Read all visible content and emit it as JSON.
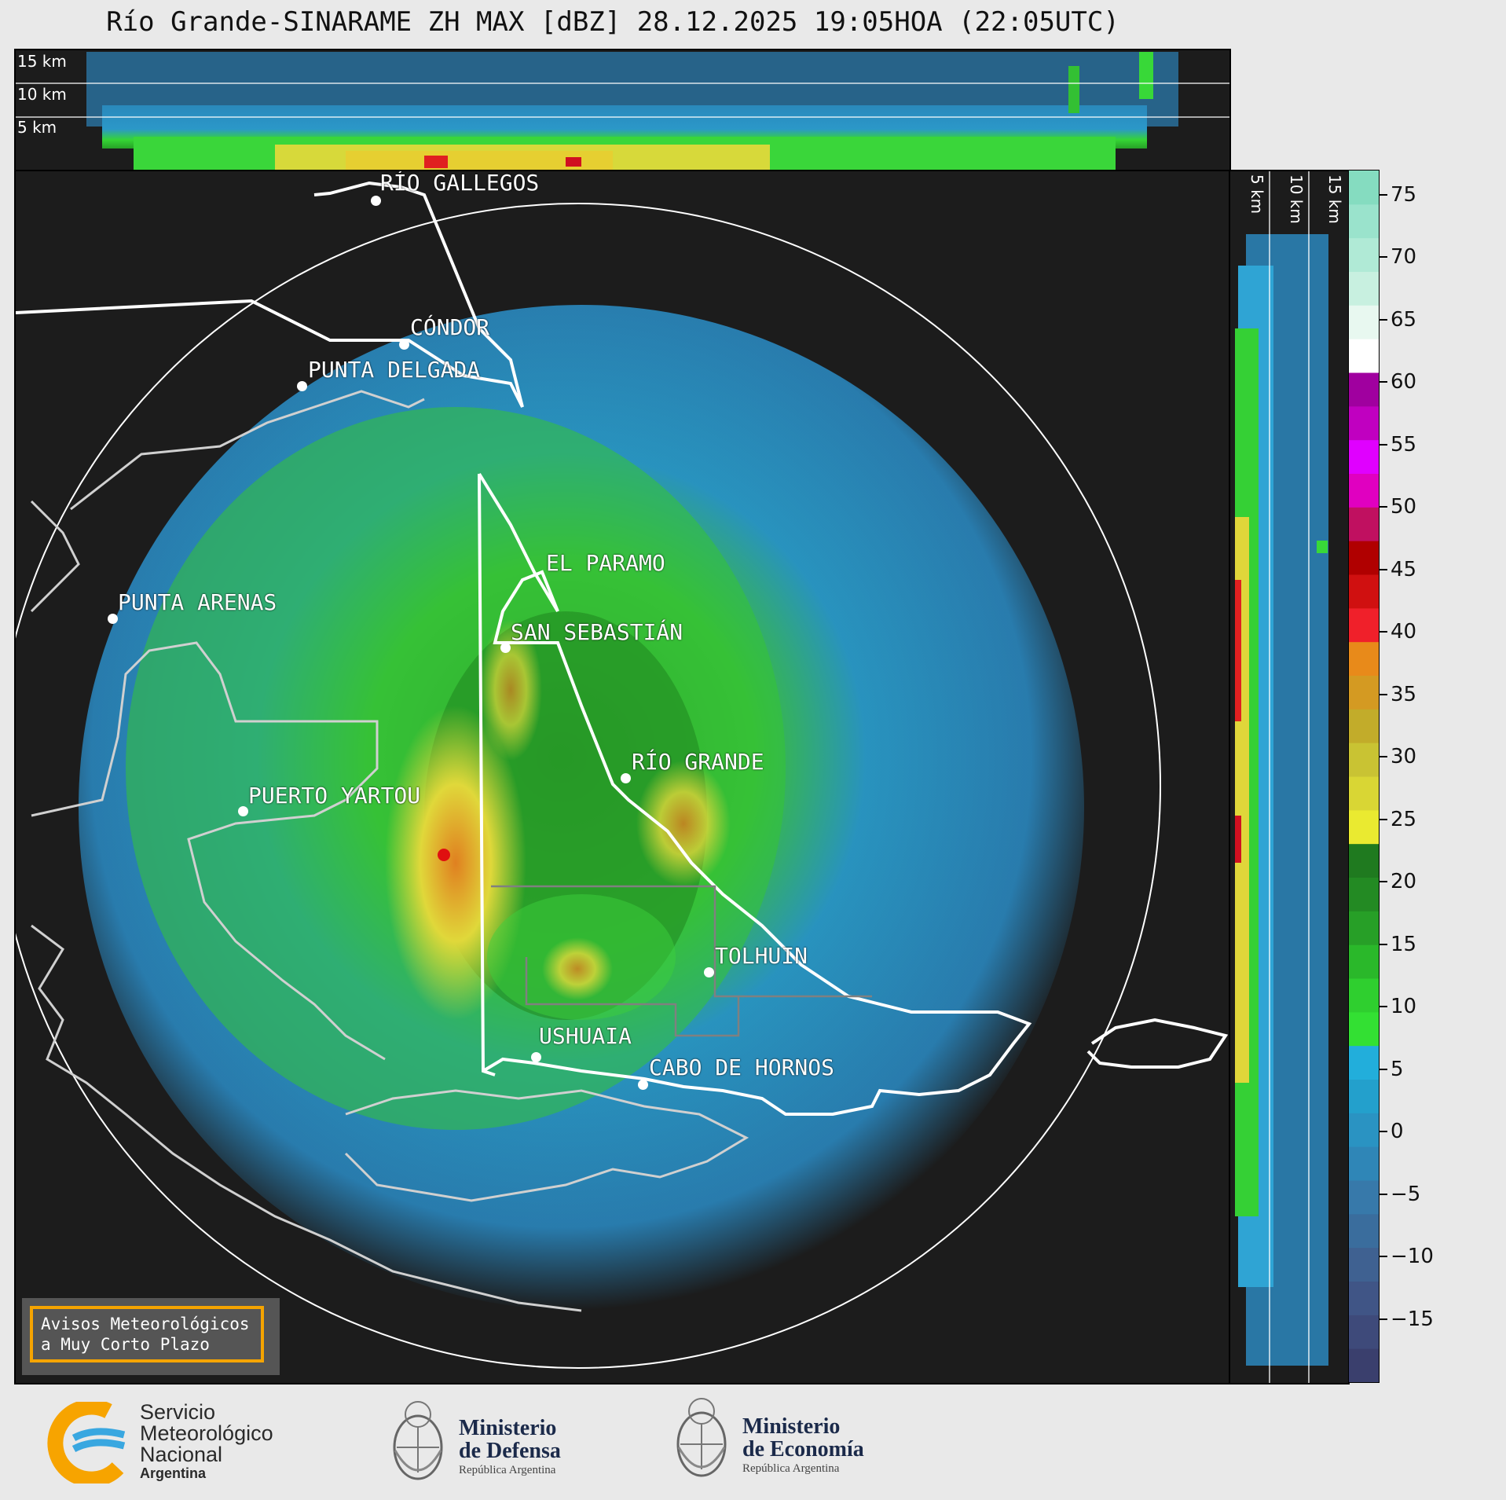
{
  "header": {
    "title": "Río Grande-SINARAME ZH MAX [dBZ] 28.12.2025 19:05HOA (22:05UTC)"
  },
  "top_panel": {
    "height_labels": [
      "15 km",
      "10 km",
      "5 km"
    ]
  },
  "right_panel": {
    "height_labels": [
      "5 km",
      "10 km",
      "15 km"
    ]
  },
  "colorbar": {
    "unit": "dBZ",
    "range": [
      -20,
      77
    ],
    "ticks": [
      75,
      70,
      65,
      60,
      55,
      50,
      45,
      40,
      35,
      30,
      25,
      20,
      15,
      10,
      5,
      0,
      -5,
      -10,
      -15
    ],
    "tick_labels": [
      "75",
      "70",
      "65",
      "60",
      "55",
      "50",
      "45",
      "40",
      "35",
      "30",
      "25",
      "20",
      "15",
      "10",
      "5",
      "0",
      "−5",
      "−10",
      "−15"
    ],
    "colors_low_to_high": [
      "#3a3f6d",
      "#3e4a7a",
      "#405586",
      "#3f6191",
      "#3a6d9d",
      "#3779aa",
      "#2f86b7",
      "#2a93c2",
      "#23a0cc",
      "#22aedb",
      "#33e033",
      "#2fcf2f",
      "#2ab82a",
      "#279f27",
      "#238a23",
      "#1f7a1f",
      "#eaea30",
      "#d9d634",
      "#c9c333",
      "#c2ac2a",
      "#d49a22",
      "#e88a1a",
      "#f0202a",
      "#d01010",
      "#b00000",
      "#c01060",
      "#e000c0",
      "#e000ff",
      "#c000c0",
      "#a0009f",
      "#ffffff",
      "#e8f8f0",
      "#c8f0e0",
      "#b0ead6",
      "#9ae3cc",
      "#85dcc0"
    ]
  },
  "map": {
    "radar_center": "Río Grande",
    "cities": [
      {
        "name": "RÍO GALLEGOS"
      },
      {
        "name": "CÓNDOR"
      },
      {
        "name": "PUNTA DELGADA"
      },
      {
        "name": "EL PARAMO"
      },
      {
        "name": "PUNTA ARENAS"
      },
      {
        "name": "SAN SEBASTIÁN"
      },
      {
        "name": "RÍO GRANDE"
      },
      {
        "name": "PUERTO YARTOU"
      },
      {
        "name": "TOLHUIN"
      },
      {
        "name": "USHUAIA"
      },
      {
        "name": "CABO DE HORNOS"
      }
    ]
  },
  "badge": {
    "line1": "Avisos Meteorológicos",
    "line2": "a Muy Corto Plazo"
  },
  "logos": {
    "smn": {
      "line1": "Servicio",
      "line2": "Meteorológico",
      "line3": "Nacional",
      "line4": "Argentina",
      "icon": "smn-logo-icon"
    },
    "defensa": {
      "line1": "Ministerio",
      "line2": "de Defensa",
      "line3": "República Argentina",
      "icon": "argentina-coat-of-arms-icon"
    },
    "economia": {
      "line1": "Ministerio",
      "line2": "de Economía",
      "line3": "República Argentina",
      "icon": "argentina-coat-of-arms-icon"
    }
  }
}
